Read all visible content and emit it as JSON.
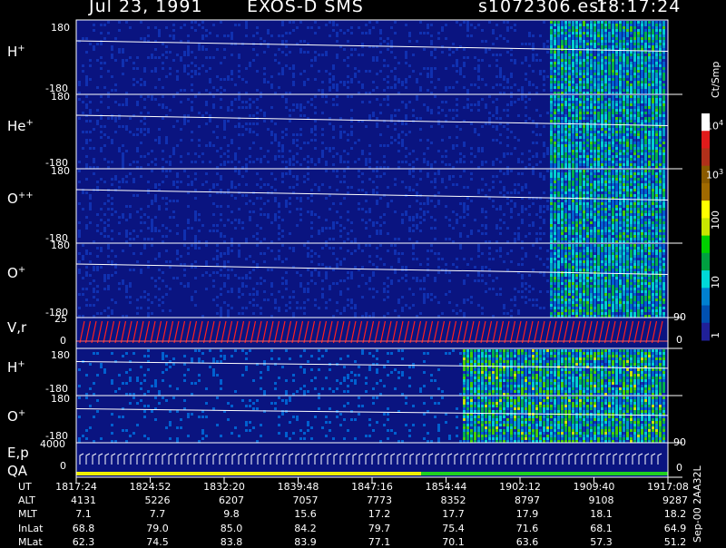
{
  "header": {
    "date": "Jul 23, 1991",
    "instrument": "EXOS-D SMS",
    "file": "s1072306.esr",
    "time": "18:17:24"
  },
  "panels": [
    {
      "id": "h_plus",
      "label": "H",
      "sup": "+",
      "top": "180",
      "bottom": "-180"
    },
    {
      "id": "he_plus",
      "label": "He",
      "sup": "+",
      "top": "180",
      "bottom": "-180"
    },
    {
      "id": "o_pp",
      "label": "O",
      "sup": "++",
      "top": "180",
      "bottom": "-180"
    },
    {
      "id": "o_plus",
      "label": "O",
      "sup": "+",
      "top": "180",
      "bottom": "-180"
    },
    {
      "id": "vr",
      "label": "V,r",
      "top": "25",
      "bottom": "0",
      "right_top": "90",
      "right_bottom": "0"
    },
    {
      "id": "h_plus2",
      "label": "H",
      "sup": "+",
      "top": "180",
      "bottom": "-180"
    },
    {
      "id": "o_plus2",
      "label": "O",
      "sup": "+",
      "top": "180",
      "bottom": "-180"
    },
    {
      "id": "ep",
      "label": "E,p",
      "label2": "QA",
      "top": "4000",
      "bottom": "0",
      "right_top": "90",
      "right_bottom": "0"
    }
  ],
  "colorbar": {
    "unit": "Ct/Smp",
    "ticks": [
      "10^4",
      "10^3",
      "100",
      "10",
      "1"
    ],
    "colors": [
      "#ffffff",
      "#e11b1b",
      "#b0301a",
      "#8a5a00",
      "#a06a00",
      "#ffff00",
      "#c8e600",
      "#00d000",
      "#00a040",
      "#00d8d8",
      "#0080d0",
      "#0050b0",
      "#202098"
    ]
  },
  "table": {
    "row_labels": [
      "UT",
      "ALT",
      "MLT",
      "InLat",
      "MLat"
    ],
    "columns": [
      [
        "1817:24",
        "4131",
        "7.1",
        "68.8",
        "62.3"
      ],
      [
        "1824:52",
        "5226",
        "7.7",
        "79.0",
        "74.5"
      ],
      [
        "1832:20",
        "6207",
        "9.8",
        "85.0",
        "83.8"
      ],
      [
        "1839:48",
        "7057",
        "15.6",
        "84.2",
        "83.9"
      ],
      [
        "1847:16",
        "7773",
        "17.2",
        "79.7",
        "77.1"
      ],
      [
        "1854:44",
        "8352",
        "17.7",
        "75.4",
        "70.1"
      ],
      [
        "1902:12",
        "8797",
        "17.9",
        "71.6",
        "63.6"
      ],
      [
        "1909:40",
        "9108",
        "18.1",
        "68.1",
        "57.3"
      ],
      [
        "1917:08",
        "9287",
        "18.2",
        "64.9",
        "51.2"
      ]
    ]
  },
  "footer_vertical": "Sep-00  2AA32L",
  "chart_data": {
    "type": "heatmap",
    "x_ticks": [
      "1817:24",
      "1824:52",
      "1832:20",
      "1839:48",
      "1847:16",
      "1854:44",
      "1902:12",
      "1909:40",
      "1917:08"
    ],
    "z_scale": "log",
    "z_range": [
      1,
      10000
    ],
    "z_unit": "Ct/Smp"
  }
}
